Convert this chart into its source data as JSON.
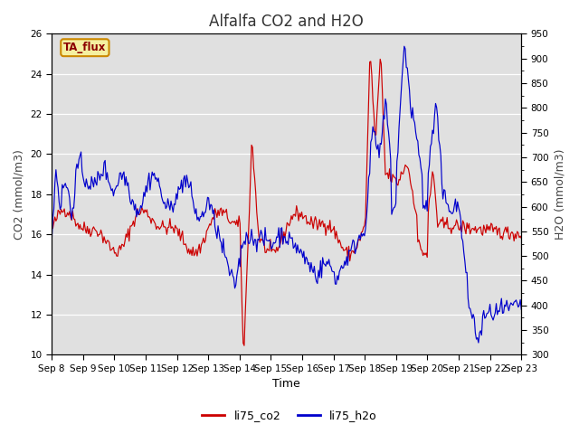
{
  "title": "Alfalfa CO2 and H2O",
  "xlabel": "Time",
  "ylabel_left": "CO2 (mmol/m3)",
  "ylabel_right": "H2O (mmol/m3)",
  "ylim_left": [
    10,
    26
  ],
  "ylim_right": [
    300,
    950
  ],
  "yticks_left": [
    10,
    12,
    14,
    16,
    18,
    20,
    22,
    24,
    26
  ],
  "yticks_right": [
    300,
    350,
    400,
    450,
    500,
    550,
    600,
    650,
    700,
    750,
    800,
    850,
    900,
    950
  ],
  "xtick_labels": [
    "Sep 8",
    "Sep 9",
    "Sep 10",
    "Sep 11",
    "Sep 12",
    "Sep 13",
    "Sep 14",
    "Sep 15",
    "Sep 16",
    "Sep 17",
    "Sep 18",
    "Sep 19",
    "Sep 20",
    "Sep 21",
    "Sep 22",
    "Sep 23"
  ],
  "annotation_text": "TA_flux",
  "annotation_box_facecolor": "#f5f0a0",
  "annotation_box_edgecolor": "#cc8800",
  "annotation_text_color": "#8b0000",
  "color_co2": "#cc0000",
  "color_h2o": "#0000cc",
  "legend_co2": "li75_co2",
  "legend_h2o": "li75_h2o",
  "background_color": "#e0e0e0",
  "title_fontsize": 12,
  "label_fontsize": 9,
  "tick_fontsize": 7.5
}
